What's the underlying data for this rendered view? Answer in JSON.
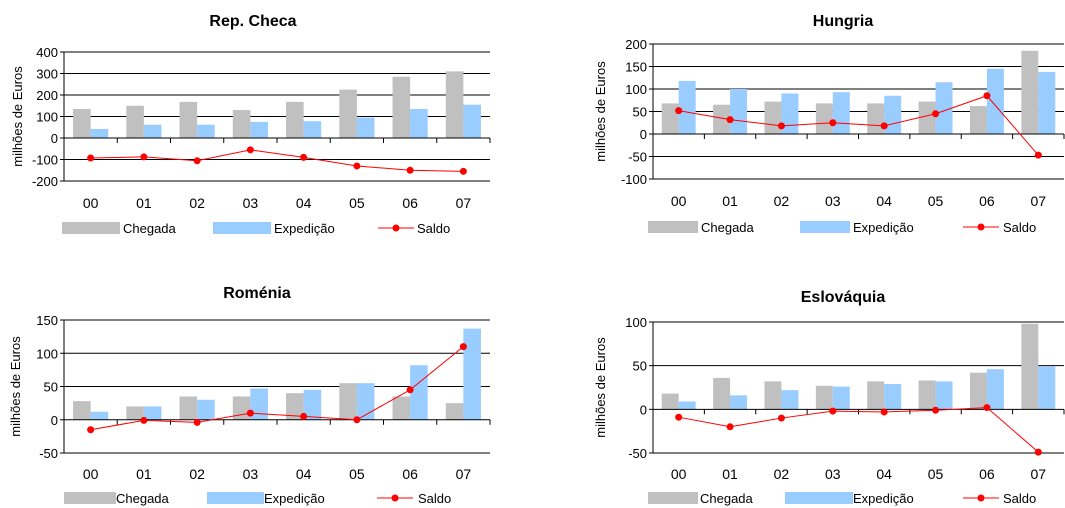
{
  "chart_data": [
    {
      "type": "bar",
      "title": "Rep. Checa",
      "ylabel": "milhões de Euros",
      "xlabel": "",
      "categories": [
        "00",
        "01",
        "02",
        "03",
        "04",
        "05",
        "06",
        "07"
      ],
      "ylim": [
        -200,
        400
      ],
      "yticks": [
        -200,
        -100,
        0,
        100,
        200,
        300,
        400
      ],
      "ytick_labels": [
        "-200",
        "-100",
        "0",
        "100",
        "200",
        "300",
        "400"
      ],
      "series": [
        {
          "name": "Chegada",
          "kind": "bar",
          "color": "#c0c0c0",
          "values": [
            135,
            150,
            168,
            130,
            168,
            225,
            285,
            310
          ]
        },
        {
          "name": "Expedição",
          "kind": "bar",
          "color": "#99ccff",
          "values": [
            42,
            62,
            62,
            75,
            78,
            95,
            135,
            155
          ]
        },
        {
          "name": "Saldo",
          "kind": "line",
          "color": "#ff0000",
          "values": [
            -93,
            -88,
            -106,
            -55,
            -90,
            -130,
            -150,
            -155
          ]
        }
      ],
      "legend_position": "bottom",
      "grid": true
    },
    {
      "type": "bar",
      "title": "Hungria",
      "ylabel": "milhões de Euros",
      "xlabel": "",
      "categories": [
        "00",
        "01",
        "02",
        "03",
        "04",
        "05",
        "06",
        "07"
      ],
      "ylim": [
        -100,
        200
      ],
      "yticks": [
        -100,
        -50,
        0,
        50,
        100,
        150,
        200
      ],
      "ytick_labels": [
        "-100",
        "-50",
        "0",
        "50",
        "100",
        "150",
        "200"
      ],
      "series": [
        {
          "name": "Chegada",
          "kind": "bar",
          "color": "#c0c0c0",
          "values": [
            68,
            65,
            72,
            68,
            68,
            72,
            62,
            185
          ]
        },
        {
          "name": "Expedição",
          "kind": "bar",
          "color": "#99ccff",
          "values": [
            118,
            100,
            90,
            93,
            85,
            115,
            145,
            138
          ]
        },
        {
          "name": "Saldo",
          "kind": "line",
          "color": "#ff0000",
          "values": [
            52,
            32,
            18,
            25,
            18,
            45,
            85,
            -47
          ]
        }
      ],
      "legend_position": "bottom",
      "grid": true
    },
    {
      "type": "bar",
      "title": "Roménia",
      "ylabel": "milhões de Euros",
      "xlabel": "",
      "categories": [
        "00",
        "01",
        "02",
        "03",
        "04",
        "05",
        "06",
        "07"
      ],
      "ylim": [
        -50,
        150
      ],
      "yticks": [
        -50,
        0,
        50,
        100,
        150
      ],
      "ytick_labels": [
        "-50",
        "0",
        "50",
        "100",
        "150"
      ],
      "series": [
        {
          "name": "Chegada",
          "kind": "bar",
          "color": "#c0c0c0",
          "values": [
            28,
            20,
            35,
            35,
            40,
            55,
            35,
            25
          ]
        },
        {
          "name": "Expedição",
          "kind": "bar",
          "color": "#99ccff",
          "values": [
            12,
            20,
            30,
            47,
            45,
            55,
            82,
            137
          ]
        },
        {
          "name": "Saldo",
          "kind": "line",
          "color": "#ff0000",
          "values": [
            -15,
            -1,
            -4,
            10,
            5,
            0,
            45,
            110
          ]
        }
      ],
      "legend_position": "bottom",
      "grid": true
    },
    {
      "type": "bar",
      "title": "Eslováquia",
      "ylabel": "milhões de Euros",
      "xlabel": "",
      "categories": [
        "00",
        "01",
        "02",
        "03",
        "04",
        "05",
        "06",
        "07"
      ],
      "ylim": [
        -50,
        100
      ],
      "yticks": [
        -50,
        0,
        50,
        100
      ],
      "ytick_labels": [
        "-50",
        "0",
        "50",
        "100"
      ],
      "series": [
        {
          "name": "Chegada",
          "kind": "bar",
          "color": "#c0c0c0",
          "values": [
            18,
            36,
            32,
            27,
            32,
            33,
            42,
            98
          ]
        },
        {
          "name": "Expedição",
          "kind": "bar",
          "color": "#99ccff",
          "values": [
            9,
            16,
            22,
            26,
            29,
            32,
            46,
            49
          ]
        },
        {
          "name": "Saldo",
          "kind": "line",
          "color": "#ff0000",
          "values": [
            -9,
            -20,
            -10,
            -2,
            -3,
            -1,
            2,
            -49
          ]
        }
      ],
      "legend_position": "bottom",
      "grid": true
    }
  ]
}
